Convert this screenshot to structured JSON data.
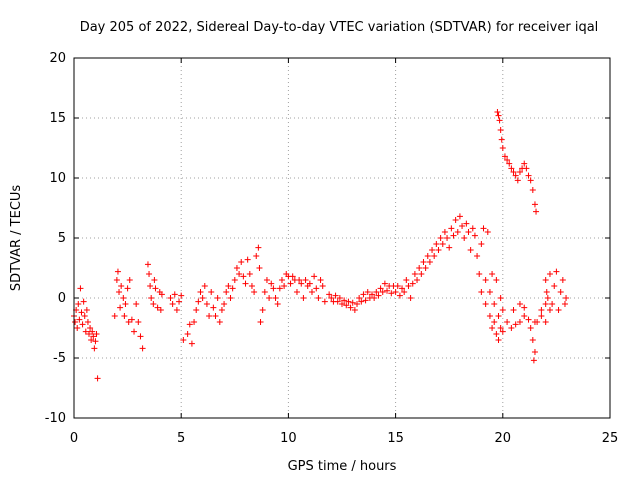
{
  "chart_data": {
    "type": "scatter",
    "title": "Day 205 of 2022, Sidereal Day-to-day VTEC variation (SDTVAR) for receiver iqal",
    "xlabel": "GPS time / hours",
    "ylabel": "SDTVAR / TECUs",
    "xlim": [
      0,
      25
    ],
    "ylim": [
      -10,
      20
    ],
    "xticks": [
      "0",
      "5",
      "10",
      "15",
      "20",
      "25"
    ],
    "yticks": [
      "-10",
      "-5",
      "0",
      "5",
      "10",
      "15",
      "20"
    ],
    "grid": true,
    "marker": "+",
    "color": "#ff0000",
    "series": [
      {
        "name": "SDTVAR",
        "points": [
          [
            0.0,
            -1.5
          ],
          [
            0.05,
            -2.0
          ],
          [
            0.1,
            -1.0
          ],
          [
            0.15,
            -2.5
          ],
          [
            0.2,
            -0.5
          ],
          [
            0.25,
            -1.8
          ],
          [
            0.3,
            0.8
          ],
          [
            0.35,
            -1.2
          ],
          [
            0.4,
            -2.2
          ],
          [
            0.45,
            -0.3
          ],
          [
            0.5,
            -1.5
          ],
          [
            0.55,
            -2.8
          ],
          [
            0.6,
            -1.0
          ],
          [
            0.65,
            -2.0
          ],
          [
            0.7,
            -3.0
          ],
          [
            0.75,
            -2.5
          ],
          [
            0.8,
            -3.5
          ],
          [
            0.85,
            -2.8
          ],
          [
            0.9,
            -3.2
          ],
          [
            0.95,
            -4.2
          ],
          [
            1.0,
            -3.6
          ],
          [
            1.05,
            -3.0
          ],
          [
            1.1,
            -6.7
          ],
          [
            1.9,
            -1.5
          ],
          [
            2.0,
            1.5
          ],
          [
            2.05,
            2.2
          ],
          [
            2.1,
            0.5
          ],
          [
            2.15,
            -0.8
          ],
          [
            2.2,
            1.0
          ],
          [
            2.3,
            0.0
          ],
          [
            2.35,
            -1.5
          ],
          [
            2.4,
            -0.5
          ],
          [
            2.5,
            0.8
          ],
          [
            2.55,
            -2.0
          ],
          [
            2.6,
            1.5
          ],
          [
            2.7,
            -1.8
          ],
          [
            2.8,
            -2.8
          ],
          [
            2.9,
            -0.5
          ],
          [
            3.0,
            -2.0
          ],
          [
            3.1,
            -3.2
          ],
          [
            3.2,
            -4.2
          ],
          [
            3.45,
            2.8
          ],
          [
            3.5,
            2.0
          ],
          [
            3.55,
            1.0
          ],
          [
            3.6,
            0.0
          ],
          [
            3.7,
            -0.5
          ],
          [
            3.75,
            1.5
          ],
          [
            3.8,
            0.8
          ],
          [
            3.9,
            -0.8
          ],
          [
            4.0,
            0.5
          ],
          [
            4.05,
            -1.0
          ],
          [
            4.1,
            0.3
          ],
          [
            4.5,
            0.0
          ],
          [
            4.6,
            -0.5
          ],
          [
            4.7,
            0.3
          ],
          [
            4.8,
            -1.0
          ],
          [
            4.9,
            -0.3
          ],
          [
            5.0,
            0.2
          ],
          [
            5.1,
            -3.5
          ],
          [
            5.3,
            -3.0
          ],
          [
            5.4,
            -2.2
          ],
          [
            5.5,
            -3.8
          ],
          [
            5.6,
            -2.0
          ],
          [
            5.7,
            -1.0
          ],
          [
            5.8,
            -0.3
          ],
          [
            5.9,
            0.5
          ],
          [
            6.0,
            0.0
          ],
          [
            6.1,
            1.0
          ],
          [
            6.2,
            -0.5
          ],
          [
            6.3,
            -1.5
          ],
          [
            6.4,
            0.5
          ],
          [
            6.5,
            -0.8
          ],
          [
            6.6,
            -1.5
          ],
          [
            6.7,
            0.0
          ],
          [
            6.8,
            -2.0
          ],
          [
            6.9,
            -1.0
          ],
          [
            7.0,
            -0.5
          ],
          [
            7.1,
            0.5
          ],
          [
            7.2,
            1.0
          ],
          [
            7.3,
            0.0
          ],
          [
            7.4,
            0.8
          ],
          [
            7.5,
            1.5
          ],
          [
            7.6,
            2.5
          ],
          [
            7.7,
            2.0
          ],
          [
            7.8,
            3.0
          ],
          [
            7.9,
            1.8
          ],
          [
            8.0,
            1.2
          ],
          [
            8.1,
            3.2
          ],
          [
            8.2,
            2.0
          ],
          [
            8.3,
            1.0
          ],
          [
            8.4,
            0.5
          ],
          [
            8.5,
            3.5
          ],
          [
            8.6,
            4.2
          ],
          [
            8.65,
            2.5
          ],
          [
            8.7,
            -2.0
          ],
          [
            8.8,
            -1.0
          ],
          [
            8.9,
            0.5
          ],
          [
            9.0,
            1.5
          ],
          [
            9.1,
            0.0
          ],
          [
            9.2,
            1.2
          ],
          [
            9.3,
            0.8
          ],
          [
            9.4,
            0.0
          ],
          [
            9.5,
            -0.5
          ],
          [
            9.6,
            0.8
          ],
          [
            9.7,
            1.5
          ],
          [
            9.8,
            1.0
          ],
          [
            9.9,
            2.0
          ],
          [
            10.0,
            1.8
          ],
          [
            10.1,
            1.2
          ],
          [
            10.2,
            1.8
          ],
          [
            10.3,
            1.5
          ],
          [
            10.4,
            0.5
          ],
          [
            10.5,
            1.5
          ],
          [
            10.6,
            1.2
          ],
          [
            10.7,
            0.0
          ],
          [
            10.8,
            1.5
          ],
          [
            10.9,
            1.0
          ],
          [
            11.0,
            1.2
          ],
          [
            11.1,
            0.5
          ],
          [
            11.2,
            1.8
          ],
          [
            11.3,
            0.8
          ],
          [
            11.4,
            0.0
          ],
          [
            11.5,
            1.5
          ],
          [
            11.6,
            1.0
          ],
          [
            11.7,
            -0.3
          ],
          [
            11.9,
            0.3
          ],
          [
            12.0,
            0.0
          ],
          [
            12.1,
            -0.3
          ],
          [
            12.2,
            0.2
          ],
          [
            12.3,
            -0.3
          ],
          [
            12.4,
            0.0
          ],
          [
            12.5,
            -0.5
          ],
          [
            12.6,
            -0.2
          ],
          [
            12.7,
            -0.6
          ],
          [
            12.8,
            -0.3
          ],
          [
            12.9,
            -0.8
          ],
          [
            13.0,
            -0.4
          ],
          [
            13.1,
            -1.0
          ],
          [
            13.2,
            -0.5
          ],
          [
            13.3,
            0.0
          ],
          [
            13.4,
            -0.3
          ],
          [
            13.5,
            0.3
          ],
          [
            13.6,
            -0.2
          ],
          [
            13.7,
            0.5
          ],
          [
            13.8,
            0.0
          ],
          [
            13.9,
            0.3
          ],
          [
            14.0,
            0.0
          ],
          [
            14.1,
            0.5
          ],
          [
            14.2,
            0.2
          ],
          [
            14.3,
            0.8
          ],
          [
            14.4,
            0.5
          ],
          [
            14.5,
            1.2
          ],
          [
            14.6,
            0.6
          ],
          [
            14.7,
            1.0
          ],
          [
            14.8,
            0.4
          ],
          [
            14.9,
            1.0
          ],
          [
            15.0,
            0.5
          ],
          [
            15.1,
            1.0
          ],
          [
            15.2,
            0.2
          ],
          [
            15.3,
            0.8
          ],
          [
            15.4,
            0.5
          ],
          [
            15.5,
            1.5
          ],
          [
            15.6,
            1.0
          ],
          [
            15.7,
            0.0
          ],
          [
            15.8,
            1.2
          ],
          [
            15.9,
            2.0
          ],
          [
            16.0,
            1.5
          ],
          [
            16.1,
            2.5
          ],
          [
            16.2,
            2.0
          ],
          [
            16.3,
            3.0
          ],
          [
            16.4,
            2.5
          ],
          [
            16.5,
            3.5
          ],
          [
            16.6,
            3.0
          ],
          [
            16.7,
            4.0
          ],
          [
            16.8,
            3.5
          ],
          [
            16.9,
            4.5
          ],
          [
            17.0,
            4.0
          ],
          [
            17.1,
            5.0
          ],
          [
            17.2,
            4.5
          ],
          [
            17.3,
            5.5
          ],
          [
            17.4,
            5.0
          ],
          [
            17.5,
            4.2
          ],
          [
            17.6,
            5.8
          ],
          [
            17.7,
            5.2
          ],
          [
            17.8,
            6.5
          ],
          [
            17.9,
            5.5
          ],
          [
            18.0,
            6.8
          ],
          [
            18.1,
            6.0
          ],
          [
            18.2,
            5.0
          ],
          [
            18.3,
            6.2
          ],
          [
            18.4,
            5.5
          ],
          [
            18.5,
            4.0
          ],
          [
            18.6,
            5.8
          ],
          [
            18.7,
            5.2
          ],
          [
            18.8,
            3.5
          ],
          [
            18.9,
            2.0
          ],
          [
            19.0,
            4.5
          ],
          [
            19.1,
            5.8
          ],
          [
            19.2,
            1.5
          ],
          [
            19.3,
            5.5
          ],
          [
            19.4,
            0.5
          ],
          [
            19.5,
            2.0
          ],
          [
            19.6,
            -0.5
          ],
          [
            19.7,
            1.5
          ],
          [
            19.8,
            -1.5
          ],
          [
            19.9,
            0.0
          ],
          [
            20.0,
            -1.0
          ],
          [
            19.6,
            -2.0
          ],
          [
            19.7,
            -3.0
          ],
          [
            19.8,
            -3.5
          ],
          [
            19.9,
            -2.5
          ],
          [
            20.0,
            -2.8
          ],
          [
            20.2,
            -2.0
          ],
          [
            20.4,
            -2.5
          ],
          [
            20.6,
            -2.2
          ],
          [
            20.8,
            -2.0
          ],
          [
            21.0,
            -1.5
          ],
          [
            21.2,
            -1.8
          ],
          [
            21.3,
            -2.5
          ],
          [
            21.4,
            -3.5
          ],
          [
            21.5,
            -4.5
          ],
          [
            21.45,
            -5.2
          ],
          [
            21.6,
            -2.0
          ],
          [
            21.8,
            -1.0
          ],
          [
            22.0,
            -0.5
          ],
          [
            22.2,
            -1.0
          ],
          [
            19.0,
            0.5
          ],
          [
            19.2,
            -0.5
          ],
          [
            19.4,
            -1.5
          ],
          [
            19.5,
            -2.5
          ],
          [
            20.5,
            -1.0
          ],
          [
            20.8,
            -0.5
          ],
          [
            21.0,
            -0.8
          ],
          [
            21.5,
            -2.0
          ],
          [
            21.8,
            -1.5
          ],
          [
            22.0,
            -2.0
          ],
          [
            22.05,
            0.5
          ],
          [
            22.0,
            1.5
          ],
          [
            22.1,
            0.0
          ],
          [
            22.2,
            2.0
          ],
          [
            22.3,
            -0.5
          ],
          [
            22.4,
            1.0
          ],
          [
            22.5,
            2.2
          ],
          [
            22.6,
            -1.0
          ],
          [
            22.7,
            0.5
          ],
          [
            22.8,
            1.5
          ],
          [
            22.9,
            -0.5
          ],
          [
            22.95,
            0.0
          ],
          [
            19.75,
            15.5
          ],
          [
            19.8,
            15.2
          ],
          [
            19.85,
            14.8
          ],
          [
            19.9,
            14.0
          ],
          [
            19.95,
            13.2
          ],
          [
            20.0,
            12.5
          ],
          [
            20.1,
            11.8
          ],
          [
            20.2,
            11.5
          ],
          [
            20.3,
            11.2
          ],
          [
            20.4,
            10.8
          ],
          [
            20.5,
            10.5
          ],
          [
            20.6,
            10.2
          ],
          [
            20.7,
            9.8
          ],
          [
            20.8,
            10.5
          ],
          [
            20.9,
            10.8
          ],
          [
            21.0,
            11.2
          ],
          [
            21.1,
            10.8
          ],
          [
            21.2,
            10.2
          ],
          [
            21.3,
            9.8
          ],
          [
            21.4,
            9.0
          ],
          [
            21.5,
            7.8
          ],
          [
            21.55,
            7.2
          ]
        ]
      }
    ]
  }
}
